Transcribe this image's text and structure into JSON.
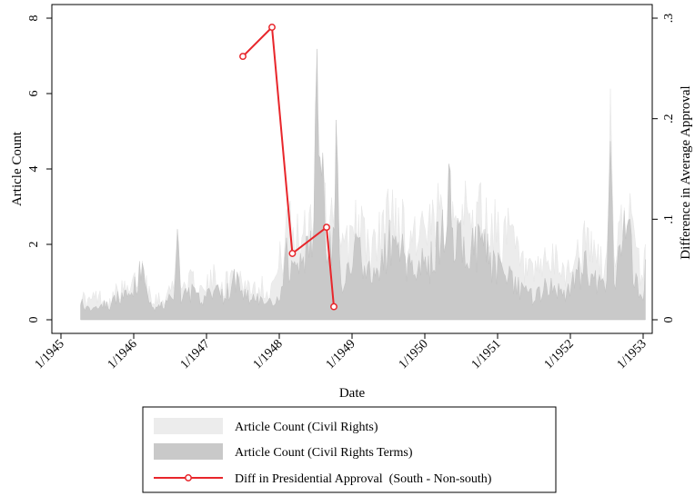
{
  "chart_data": {
    "type": "area",
    "xlabel": "Date",
    "ylabel": "Article Count",
    "y2label": "Difference in Average Approval",
    "x_ticks": [
      "1/1945",
      "1/1946",
      "1/1947",
      "1/1948",
      "1/1949",
      "1/1950",
      "1/1951",
      "1/1952",
      "1/1953"
    ],
    "x_tick_values": [
      1945.0,
      1946.0,
      1947.0,
      1948.0,
      1949.0,
      1950.0,
      1951.0,
      1952.0,
      1953.0
    ],
    "xlim": [
      1945.0,
      1953.1
    ],
    "ylim": [
      0,
      8
    ],
    "y_ticks": [
      "0",
      "2",
      "4",
      "6",
      "8"
    ],
    "y_tick_values": [
      0,
      2,
      4,
      6,
      8
    ],
    "y2lim": [
      0,
      0.3
    ],
    "y2_ticks": [
      "0",
      ".1",
      ".2",
      ".3"
    ],
    "y2_tick_values": [
      0,
      0.1,
      0.2,
      0.3
    ],
    "legend": {
      "placement": "bottom",
      "entries": [
        "Article Count (Civil Rights)",
        "Article Count (Civil Rights Terms)",
        "Diff in Presidential Approval  (South - Non-south)"
      ]
    },
    "series": [
      {
        "name": "Article Count (Civil Rights)",
        "kind": "area",
        "color": "#ececec",
        "x": [
          1945.27,
          1945.35,
          1945.5,
          1945.65,
          1945.8,
          1945.95,
          1946.1,
          1946.25,
          1946.4,
          1946.55,
          1946.6,
          1946.65,
          1946.8,
          1946.95,
          1947.1,
          1947.25,
          1947.4,
          1947.55,
          1947.7,
          1947.85,
          1947.95,
          1948.05,
          1948.1,
          1948.15,
          1948.25,
          1948.35,
          1948.45,
          1948.52,
          1948.58,
          1948.65,
          1948.72,
          1948.78,
          1948.85,
          1948.95,
          1949.05,
          1949.15,
          1949.3,
          1949.45,
          1949.6,
          1949.75,
          1949.9,
          1950.05,
          1950.2,
          1950.35,
          1950.4,
          1950.45,
          1950.6,
          1950.75,
          1950.9,
          1951.05,
          1951.2,
          1951.35,
          1951.5,
          1951.65,
          1951.8,
          1951.95,
          1952.1,
          1952.25,
          1952.4,
          1952.5,
          1952.55,
          1952.6,
          1952.7,
          1952.8,
          1952.9,
          1953.0,
          1953.03
        ],
        "values": [
          0.8,
          0.5,
          0.7,
          0.5,
          0.9,
          0.8,
          1.5,
          0.7,
          0.6,
          1.0,
          2.4,
          0.9,
          1.1,
          0.8,
          1.2,
          1.0,
          1.4,
          1.0,
          1.0,
          0.9,
          1.2,
          2.0,
          3.4,
          2.6,
          2.4,
          2.8,
          3.1,
          6.6,
          4.3,
          2.5,
          3.0,
          5.0,
          1.8,
          2.3,
          3.2,
          2.4,
          2.0,
          2.8,
          3.3,
          2.3,
          2.7,
          2.4,
          3.0,
          4.1,
          2.8,
          3.4,
          2.8,
          3.3,
          2.7,
          2.6,
          2.3,
          1.5,
          1.2,
          1.7,
          1.6,
          1.4,
          2.0,
          2.2,
          1.7,
          1.5,
          6.3,
          1.9,
          2.6,
          3.1,
          1.8,
          1.3,
          2.0
        ]
      },
      {
        "name": "Article Count (Civil Rights Terms)",
        "kind": "area",
        "color": "#c9c9c9",
        "x": [
          1945.27,
          1945.35,
          1945.5,
          1945.65,
          1945.8,
          1945.95,
          1946.1,
          1946.25,
          1946.4,
          1946.55,
          1946.6,
          1946.65,
          1946.8,
          1946.95,
          1947.1,
          1947.25,
          1947.4,
          1947.55,
          1947.7,
          1947.85,
          1947.95,
          1948.05,
          1948.1,
          1948.15,
          1948.25,
          1948.35,
          1948.45,
          1948.52,
          1948.58,
          1948.65,
          1948.72,
          1948.78,
          1948.85,
          1948.95,
          1949.05,
          1949.15,
          1949.3,
          1949.45,
          1949.6,
          1949.75,
          1949.9,
          1950.05,
          1950.2,
          1950.35,
          1950.4,
          1950.45,
          1950.6,
          1950.75,
          1950.9,
          1951.05,
          1951.2,
          1951.35,
          1951.5,
          1951.65,
          1951.8,
          1951.95,
          1952.1,
          1952.25,
          1952.4,
          1952.5,
          1952.55,
          1952.6,
          1952.7,
          1952.8,
          1952.9,
          1953.0,
          1953.03
        ],
        "values": [
          0.7,
          0.3,
          0.5,
          0.4,
          0.7,
          0.6,
          1.4,
          0.4,
          0.4,
          0.7,
          2.3,
          0.7,
          0.8,
          0.5,
          0.9,
          0.7,
          1.2,
          0.7,
          0.6,
          0.5,
          0.4,
          0.9,
          2.2,
          1.5,
          1.4,
          1.7,
          2.3,
          5.8,
          4.9,
          1.7,
          2.2,
          4.6,
          0.9,
          1.3,
          2.4,
          1.6,
          1.2,
          2.0,
          2.5,
          1.5,
          1.9,
          1.6,
          2.3,
          3.9,
          2.0,
          2.6,
          1.9,
          2.4,
          1.8,
          1.3,
          1.1,
          0.9,
          0.6,
          0.9,
          0.9,
          0.7,
          1.3,
          1.6,
          1.0,
          0.9,
          6.2,
          1.1,
          2.0,
          2.9,
          1.0,
          0.6,
          1.6
        ]
      },
      {
        "name": "Diff in Presidential Approval  (South - Non-south)",
        "kind": "line",
        "axis": "right",
        "color": "#e8262b",
        "x": [
          1947.5,
          1947.9,
          1948.18,
          1948.65,
          1948.75
        ],
        "values": [
          0.262,
          0.291,
          0.066,
          0.092,
          0.013
        ]
      }
    ]
  }
}
